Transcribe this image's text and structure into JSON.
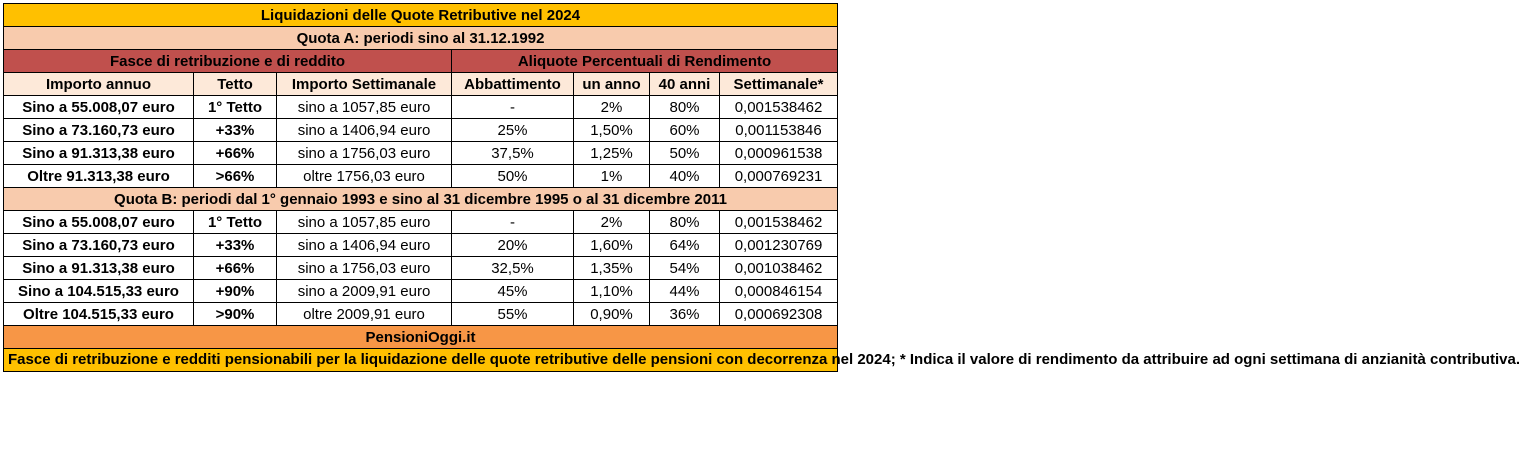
{
  "title": "Liquidazioni delle Quote Retributive nel 2024",
  "quota_a": {
    "heading": "Quota A: periodi sino al 31.12.1992",
    "rows": [
      [
        "Sino a 55.008,07 euro",
        "1° Tetto",
        "sino a 1057,85 euro",
        "-",
        "2%",
        "80%",
        "0,001538462"
      ],
      [
        "Sino a 73.160,73 euro",
        "+33%",
        "sino a 1406,94 euro",
        "25%",
        "1,50%",
        "60%",
        "0,001153846"
      ],
      [
        "Sino a 91.313,38 euro",
        "+66%",
        "sino a 1756,03 euro",
        "37,5%",
        "1,25%",
        "50%",
        "0,000961538"
      ],
      [
        "Oltre 91.313,38 euro",
        ">66%",
        "oltre 1756,03 euro",
        "50%",
        "1%",
        "40%",
        "0,000769231"
      ]
    ]
  },
  "group_headers": {
    "left": "Fasce di retribuzione e di reddito",
    "right": "Aliquote Percentuali di Rendimento"
  },
  "columns": [
    "Importo annuo",
    "Tetto",
    "Importo Settimanale",
    "Abbattimento",
    "un anno",
    "40 anni",
    "Settimanale*"
  ],
  "quota_b": {
    "heading": "Quota B: periodi dal 1° gennaio 1993 e sino al 31 dicembre 1995 o al 31 dicembre 2011",
    "rows": [
      [
        "Sino a 55.008,07 euro",
        "1° Tetto",
        "sino a 1057,85 euro",
        "-",
        "2%",
        "80%",
        "0,001538462"
      ],
      [
        "Sino a 73.160,73 euro",
        "+33%",
        "sino a 1406,94 euro",
        "20%",
        "1,60%",
        "64%",
        "0,001230769"
      ],
      [
        "Sino a 91.313,38 euro",
        "+66%",
        "sino a 1756,03 euro",
        "32,5%",
        "1,35%",
        "54%",
        "0,001038462"
      ],
      [
        "Sino a 104.515,33 euro",
        "+90%",
        "sino a 2009,91 euro",
        "45%",
        "1,10%",
        "44%",
        "0,000846154"
      ],
      [
        "Oltre 104.515,33 euro",
        ">90%",
        "oltre 2009,91 euro",
        "55%",
        "0,90%",
        "36%",
        "0,000692308"
      ]
    ]
  },
  "brand": "PensioniOggi.it",
  "note": "Fasce di retribuzione e redditi pensionabili per la liquidazione delle quote retributive delle pensioni con decorrenza nel 2024; * Indica il valore di rendimento da attribuire ad ogni settimana di anzianità contributiva.",
  "colors": {
    "title_bg": "#ffc000",
    "section_bg": "#f8cbad",
    "header_bg": "#c0504d",
    "subheader_bg": "#fde9d9",
    "brand_bg": "#f79646"
  }
}
